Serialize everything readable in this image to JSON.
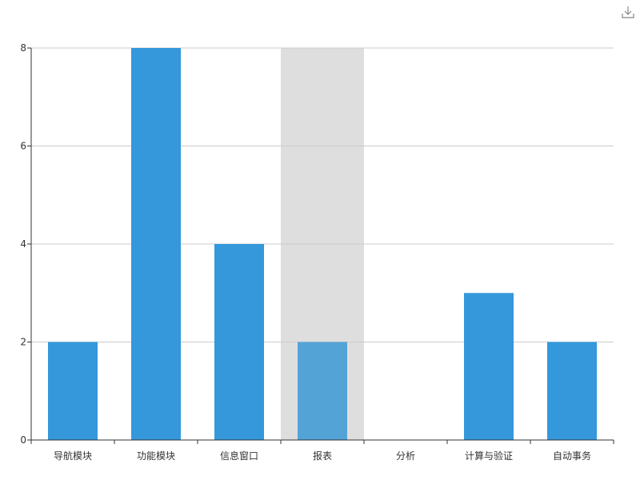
{
  "toolbox": {
    "download_icon": "download-icon"
  },
  "colors": {
    "bar": "#3498db",
    "bar_emphasis": "#54a3d6",
    "axis_pointer_shadow": "#dedede",
    "grid_line": "#cccccc",
    "axis_line": "#333333"
  },
  "chart_data": {
    "type": "bar",
    "title": "",
    "xlabel": "",
    "ylabel": "",
    "categories": [
      "导航模块",
      "功能模块",
      "信息窗口",
      "报表",
      "分析",
      "计算与验证",
      "自动事务"
    ],
    "values": [
      2,
      8,
      4,
      2,
      0,
      3,
      2
    ],
    "ylim": [
      0,
      8
    ],
    "yticks": [
      0,
      2,
      4,
      6,
      8
    ],
    "grid": true,
    "legend": "none",
    "highlighted_category": "报表"
  }
}
